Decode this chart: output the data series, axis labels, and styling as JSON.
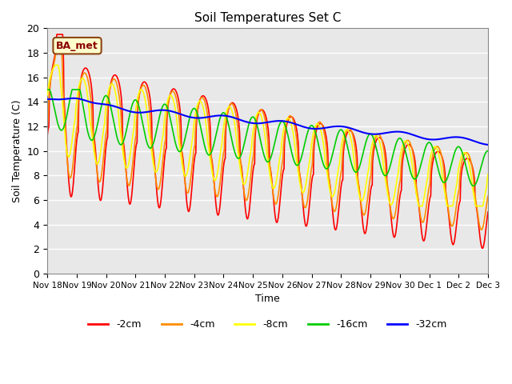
{
  "title": "Soil Temperatures Set C",
  "xlabel": "Time",
  "ylabel": "Soil Temperature (C)",
  "ylim": [
    0,
    20
  ],
  "annotation_text": "BA_met",
  "annotation_color": "#8B0000",
  "annotation_bg": "#FFFFCC",
  "series_colors": {
    "-2cm": "#FF0000",
    "-4cm": "#FF8C00",
    "-8cm": "#FFFF00",
    "-16cm": "#00CC00",
    "-32cm": "#0000FF"
  },
  "xtick_labels": [
    "Nov 18",
    "Nov 19",
    "Nov 20",
    "Nov 21",
    "Nov 22",
    "Nov 23",
    "Nov 24",
    "Nov 25",
    "Nov 26",
    "Nov 27",
    "Nov 28",
    "Nov 29",
    "Nov 30",
    "Dec 1",
    "Dec 2",
    "Dec 3"
  ],
  "background_color": "#E8E8E8",
  "grid_color": "#FFFFFF",
  "n_points": 1440,
  "start_day": 0,
  "end_day": 15
}
